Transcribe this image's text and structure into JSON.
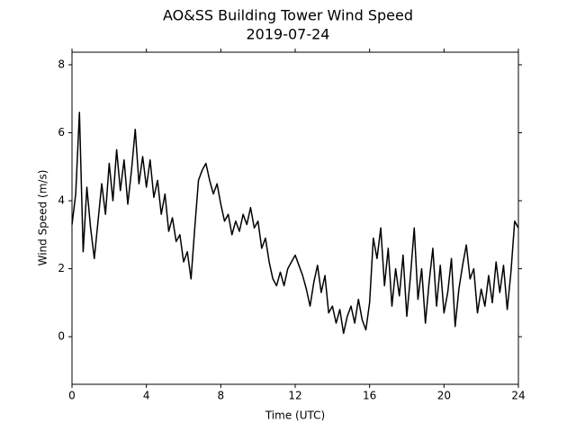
{
  "chart_data": {
    "type": "line",
    "title": "AO&SS Building Tower Wind Speed",
    "subtitle": "2019-07-24",
    "x_label": "Time (UTC)",
    "y_label": "Wind Speed (m/s)",
    "x": [
      0,
      0.2,
      0.4,
      0.6,
      0.8,
      1,
      1.2,
      1.4,
      1.6,
      1.8,
      2,
      2.2,
      2.4,
      2.6,
      2.8,
      3,
      3.2,
      3.4,
      3.6,
      3.8,
      4,
      4.2,
      4.4,
      4.6,
      4.8,
      5,
      5.2,
      5.4,
      5.6,
      5.8,
      6,
      6.2,
      6.4,
      6.6,
      6.8,
      7,
      7.2,
      7.4,
      7.6,
      7.8,
      8,
      8.2,
      8.4,
      8.6,
      8.8,
      9,
      9.2,
      9.4,
      9.6,
      9.8,
      10,
      10.2,
      10.4,
      10.6,
      10.8,
      11,
      11.2,
      11.4,
      11.6,
      11.8,
      12,
      12.2,
      12.4,
      12.6,
      12.8,
      13,
      13.2,
      13.4,
      13.6,
      13.8,
      14,
      14.2,
      14.4,
      14.6,
      14.8,
      15,
      15.2,
      15.4,
      15.6,
      15.8,
      16,
      16.2,
      16.4,
      16.6,
      16.8,
      17,
      17.2,
      17.4,
      17.6,
      17.8,
      18,
      18.2,
      18.4,
      18.6,
      18.8,
      19,
      19.2,
      19.4,
      19.6,
      19.8,
      20,
      20.2,
      20.4,
      20.6,
      20.8,
      21,
      21.2,
      21.4,
      21.6,
      21.8,
      22,
      22.2,
      22.4,
      22.6,
      22.8,
      23,
      23.2,
      23.4,
      23.6,
      23.8,
      24
    ],
    "series": [
      {
        "color": "#000000",
        "values": [
          3.3,
          4.2,
          6.6,
          2.5,
          4.4,
          3.2,
          2.3,
          3.4,
          4.5,
          3.6,
          5.1,
          4.0,
          5.5,
          4.3,
          5.2,
          3.9,
          4.9,
          6.1,
          4.5,
          5.3,
          4.4,
          5.2,
          4.1,
          4.6,
          3.6,
          4.2,
          3.1,
          3.5,
          2.8,
          3.0,
          2.2,
          2.5,
          1.7,
          3.2,
          4.6,
          4.9,
          5.1,
          4.6,
          4.2,
          4.5,
          3.9,
          3.4,
          3.6,
          3.0,
          3.4,
          3.1,
          3.6,
          3.3,
          3.8,
          3.2,
          3.4,
          2.6,
          2.9,
          2.2,
          1.7,
          1.5,
          1.9,
          1.5,
          2.0,
          2.2,
          2.4,
          2.1,
          1.8,
          1.4,
          0.9,
          1.6,
          2.1,
          1.3,
          1.8,
          0.7,
          0.9,
          0.4,
          0.8,
          0.1,
          0.6,
          0.9,
          0.4,
          1.1,
          0.5,
          0.2,
          1.0,
          2.9,
          2.3,
          3.2,
          1.5,
          2.6,
          0.9,
          2.0,
          1.2,
          2.4,
          0.6,
          1.8,
          3.2,
          1.1,
          2.0,
          0.4,
          1.6,
          2.6,
          0.9,
          2.1,
          0.7,
          1.3,
          2.3,
          0.3,
          1.4,
          2.1,
          2.7,
          1.7,
          2.0,
          0.7,
          1.4,
          0.9,
          1.8,
          1.0,
          2.2,
          1.3,
          2.1,
          0.8,
          1.9,
          3.4,
          3.2
        ]
      }
    ],
    "xlim": [
      0,
      24
    ],
    "xticks": [
      0,
      4,
      8,
      12,
      16,
      20,
      24
    ],
    "ylim": [
      -1.4,
      8.37
    ],
    "yticks": [
      0,
      2,
      4,
      6,
      8
    ],
    "grid": false
  }
}
